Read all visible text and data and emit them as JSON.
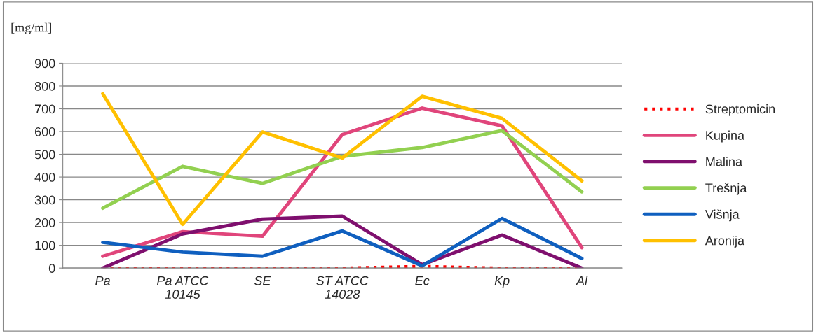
{
  "chart_data": {
    "type": "line",
    "ylabel": "[mg/ml]",
    "categories": [
      "Pa",
      "Pa ATCC\n10145",
      "SE",
      "ST ATCC\n14028",
      "Ec",
      "Kp",
      "Al"
    ],
    "series": [
      {
        "name": "Streptomicin",
        "color": "#ff0000",
        "line_style": "dotted",
        "values": [
          0,
          0,
          0,
          0,
          8,
          0,
          0
        ]
      },
      {
        "name": "Kupina",
        "color": "#e0457b",
        "values": [
          52,
          160,
          140,
          587,
          703,
          625,
          90
        ]
      },
      {
        "name": "Malina",
        "color": "#7f0f6e",
        "values": [
          0,
          150,
          215,
          228,
          15,
          145,
          0
        ]
      },
      {
        "name": "Trešnja",
        "color": "#92d050",
        "values": [
          263,
          447,
          372,
          491,
          530,
          604,
          335
        ]
      },
      {
        "name": "Višnja",
        "color": "#0f5fbf",
        "values": [
          113,
          70,
          52,
          163,
          10,
          218,
          42
        ]
      },
      {
        "name": "Aronija",
        "color": "#ffc000",
        "values": [
          766,
          192,
          598,
          484,
          755,
          658,
          383
        ]
      }
    ],
    "ylim": [
      0,
      900
    ],
    "yticks": [
      0,
      100,
      200,
      300,
      400,
      500,
      600,
      700,
      800,
      900
    ],
    "grid": "y",
    "legend": "right",
    "line_style": "solid",
    "marker": "none"
  }
}
